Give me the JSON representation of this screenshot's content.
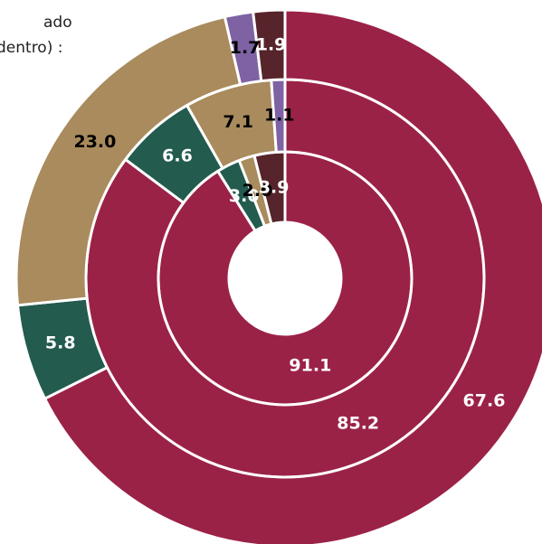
{
  "chart_data": {
    "type": "donut",
    "title_lines": [
      "ado",
      "dentro) :"
    ],
    "colors": [
      "#9b2247",
      "#235b4e",
      "#a98b5d",
      "#7e62a3",
      "#56242a"
    ],
    "label_colors": [
      "#ffffff",
      "#ffffff",
      "#000000",
      "#000000",
      "#ffffff"
    ],
    "rings": [
      {
        "values": [
          91.1,
          3.0,
          2.0,
          null,
          3.9
        ],
        "value_labels": [
          "91.1",
          "3.0",
          "2.0",
          null,
          "3.9"
        ]
      },
      {
        "values": [
          85.2,
          6.6,
          7.1,
          1.1,
          null
        ],
        "value_labels": [
          "85.2",
          "6.6",
          "7.1",
          "1.1",
          null
        ]
      },
      {
        "values": [
          67.6,
          5.8,
          23.0,
          1.7,
          1.9
        ],
        "value_labels": [
          "67.6",
          "5.8",
          "23.0",
          "1.7",
          "1.9"
        ]
      }
    ]
  }
}
